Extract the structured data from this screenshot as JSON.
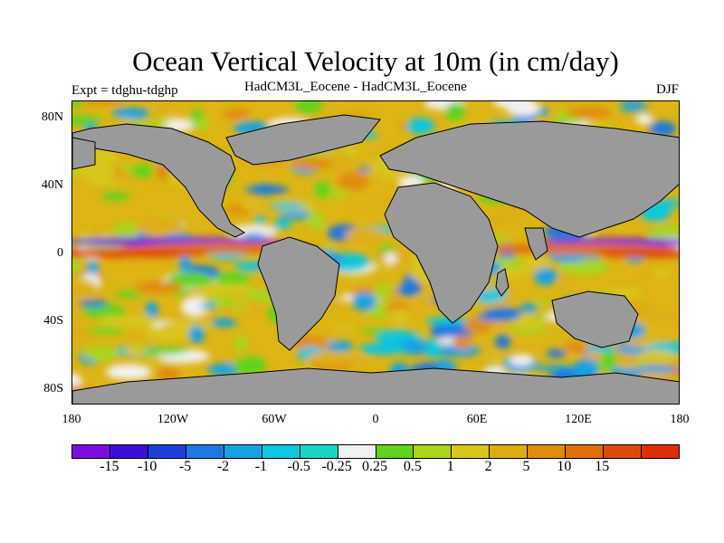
{
  "title": "Ocean Vertical Velocity at 10m (in cm/day)",
  "expt_label": "Expt = tdghu-tdghp",
  "subtitle": "HadCM3L_Eocene - HadCM3L_Eocene",
  "season": "DJF",
  "y_ticks": [
    "80N",
    "40N",
    "0",
    "40S",
    "80S"
  ],
  "x_ticks": [
    "180",
    "120W",
    "60W",
    "0",
    "60E",
    "120E",
    "180"
  ],
  "colorbar": {
    "colors": [
      "#7a0ee0",
      "#3a10d8",
      "#1e3ed8",
      "#1f78df",
      "#16a2e3",
      "#10c6de",
      "#18d6c6",
      "#f0f0f0",
      "#62d21c",
      "#a9d41a",
      "#d8c61a",
      "#dcae12",
      "#e08c0c",
      "#df7008",
      "#e04a08",
      "#df2e06"
    ],
    "labels": [
      "-15",
      "-10",
      "-5",
      "-2",
      "-1",
      "-0.5",
      "-0.25",
      "0.25",
      "0.5",
      "1",
      "2",
      "5",
      "10",
      "15"
    ]
  },
  "colors": {
    "land": "#9a9a9a",
    "coastline": "#000000"
  }
}
